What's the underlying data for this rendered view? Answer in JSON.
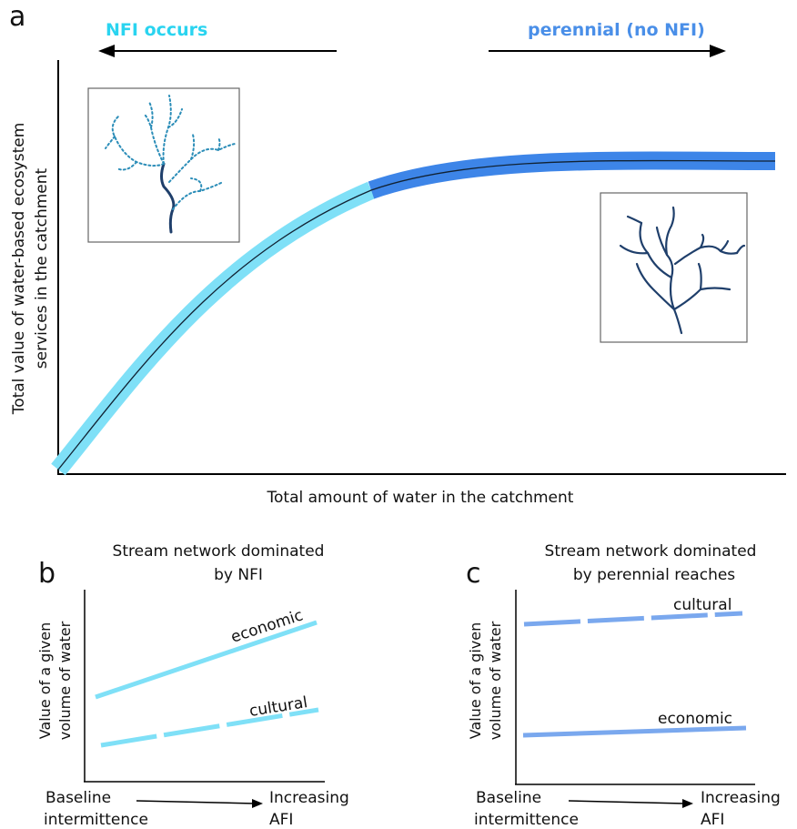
{
  "panel_a": {
    "label": "a",
    "arrow_left_label": "NFI occurs",
    "arrow_right_label": "perennial (no NFI)",
    "ylabel_line1": "Total value of water-based ecosystem",
    "ylabel_line2": "services in the catchment",
    "xlabel": "Total amount of water in the catchment"
  },
  "panel_b": {
    "label": "b",
    "title_line1": "Stream network dominated",
    "title_line2": "by NFI",
    "ylabel_line1": "Value of a given",
    "ylabel_line2": "volume of water",
    "series1_label": "economic",
    "series2_label": "cultural",
    "x_left_line1": "Baseline",
    "x_left_line2": "intermittence",
    "x_right_line1": "Increasing",
    "x_right_line2": "AFI"
  },
  "panel_c": {
    "label": "c",
    "title_line1": "Stream network dominated",
    "title_line2": "by perennial reaches",
    "ylabel_line1": "Value of a given",
    "ylabel_line2": "volume of water",
    "series1_label": "cultural",
    "series2_label": "economic",
    "x_left_line1": "Baseline",
    "x_left_line2": "intermittence",
    "x_right_line1": "Increasing",
    "x_right_line2": "AFI"
  },
  "colors": {
    "nfi_cyan": "#7fe0f7",
    "nfi_text": "#2ad4f0",
    "perennial_blue": "#3d85e8",
    "perennial_text": "#4a8fe8",
    "line_blue": "#7aa8ee",
    "stream_dark": "#1f3f6b",
    "stream_dotted": "#2b8db8"
  }
}
